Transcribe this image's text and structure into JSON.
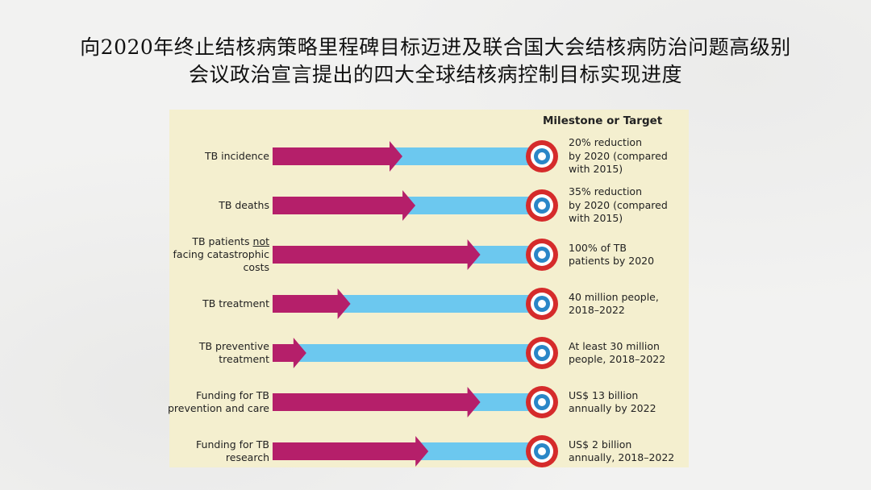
{
  "slide": {
    "title_line1": "向2020年终止结核病策略里程碑目标迈进及联合国大会结核病防治问题高级别",
    "title_line2": "会议政治宣言提出的四大全球结核病控制目标实现进度"
  },
  "colors": {
    "panel_bg": "#f4efcf",
    "progress_arrow": "#b51f6a",
    "remaining_bar": "#6cc8ef",
    "target_outer": "#d52b2b",
    "target_inner": "#2a86c7"
  },
  "chart_data": {
    "type": "bar",
    "header": "Milestone or Target",
    "rows": [
      {
        "label": "TB incidence",
        "target": "20% reduction\nby 2020 (compared\nwith 2015)",
        "progress": 0.5
      },
      {
        "label": "TB deaths",
        "target": "35% reduction\nby 2020 (compared\nwith 2015)",
        "progress": 0.55
      },
      {
        "label_pre": "TB patients ",
        "label_emph": "not",
        "label_post": "\nfacing catastrophic\ncosts",
        "target": "100% of TB\npatients by 2020",
        "progress": 0.8
      },
      {
        "label": "TB treatment",
        "target": "40 million people,\n2018–2022",
        "progress": 0.3
      },
      {
        "label": "TB preventive\ntreatment",
        "target": "At least 30 million\npeople, 2018–2022",
        "progress": 0.13
      },
      {
        "label": "Funding for TB\nprevention and care",
        "target": "US$ 13 billion\nannually by 2022",
        "progress": 0.8
      },
      {
        "label": "Funding for TB\nresearch",
        "target": "US$ 2 billion\nannually, 2018–2022",
        "progress": 0.6
      }
    ]
  }
}
